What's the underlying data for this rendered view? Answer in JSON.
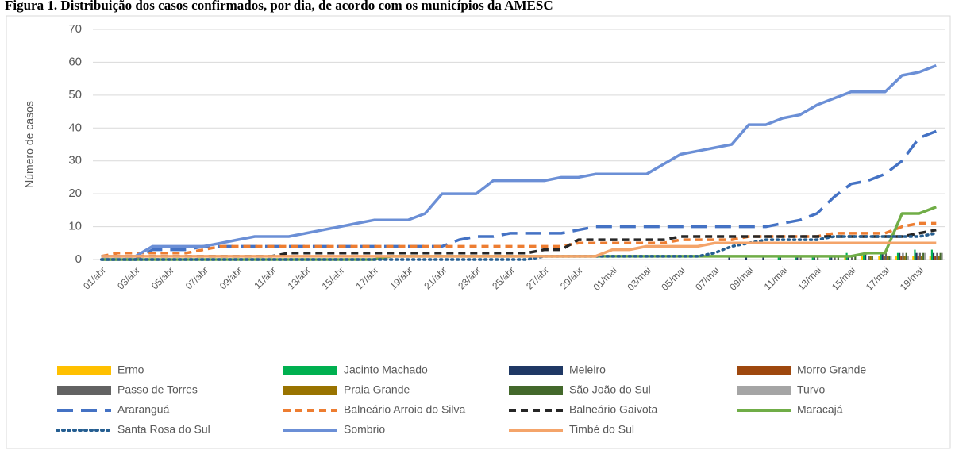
{
  "chart_data": {
    "type": "line",
    "title": "Figura 1. Distribuição dos casos confirmados, por dia, de acordo com os municípios da AMESC",
    "y_label": "Número de casos",
    "categories": [
      "01/abr",
      null,
      "03/abr",
      null,
      "05/abr",
      null,
      "07/abr",
      null,
      "09/abr",
      null,
      "11/abr",
      null,
      "13/abr",
      null,
      "15/abr",
      null,
      "17/abr",
      null,
      "19/abr",
      null,
      "21/abr",
      null,
      "23/abr",
      null,
      "25/abr",
      null,
      "27/abr",
      null,
      "29/abr",
      null,
      "01/mai",
      null,
      "03/mai",
      null,
      "05/mai",
      null,
      "07/mai",
      null,
      "09/mai",
      null,
      "11/mai",
      null,
      "13/mai",
      null,
      "15/mai",
      null,
      "17/mai",
      null,
      "19/mai",
      null
    ],
    "ylim": [
      0,
      70
    ],
    "yticks": [
      0,
      10,
      20,
      30,
      40,
      50,
      60,
      70
    ],
    "grid": true,
    "series": [
      {
        "name": "Ermo",
        "type": "bar",
        "color": "#FFC000",
        "values": [
          0,
          0,
          0,
          0,
          0,
          0,
          0,
          0,
          0,
          0,
          0,
          0,
          0,
          0,
          0,
          0,
          0,
          0,
          0,
          0,
          0,
          0,
          0,
          0,
          0,
          0,
          0,
          0,
          0,
          0,
          0,
          0,
          0,
          0,
          0,
          0,
          0,
          0,
          0,
          0,
          0,
          0,
          0,
          0,
          1,
          1,
          1,
          1,
          1,
          1
        ]
      },
      {
        "name": "Jacinto Machado",
        "type": "bar",
        "color": "#00B050",
        "values": [
          0,
          0,
          0,
          0,
          0,
          0,
          0,
          0,
          0,
          0,
          0,
          0,
          0,
          0,
          0,
          0,
          0,
          0,
          0,
          0,
          0,
          0,
          0,
          0,
          0,
          0,
          0,
          0,
          0,
          0,
          0,
          0,
          0,
          0,
          0,
          0,
          0,
          0,
          0,
          0,
          1,
          1,
          1,
          1,
          2,
          2,
          2,
          2,
          3,
          3
        ]
      },
      {
        "name": "Meleiro",
        "type": "bar",
        "color": "#1F3864",
        "values": [
          0,
          0,
          0,
          0,
          0,
          0,
          0,
          0,
          0,
          0,
          0,
          0,
          0,
          0,
          0,
          0,
          0,
          0,
          0,
          0,
          0,
          0,
          0,
          0,
          0,
          0,
          0,
          0,
          0,
          0,
          0,
          0,
          0,
          0,
          0,
          0,
          0,
          1,
          1,
          1,
          1,
          1,
          1,
          1,
          1,
          2,
          2,
          2,
          2,
          2
        ]
      },
      {
        "name": "Morro Grande",
        "type": "bar",
        "color": "#9E480E",
        "values": [
          0,
          0,
          0,
          0,
          0,
          0,
          0,
          0,
          0,
          0,
          0,
          0,
          0,
          0,
          0,
          0,
          0,
          0,
          0,
          0,
          0,
          0,
          0,
          0,
          0,
          0,
          0,
          0,
          0,
          0,
          0,
          0,
          0,
          0,
          0,
          0,
          0,
          0,
          0,
          0,
          0,
          0,
          0,
          0,
          0,
          0,
          1,
          1,
          1,
          1
        ]
      },
      {
        "name": "Passo de Torres",
        "type": "bar",
        "color": "#636363",
        "values": [
          0,
          0,
          0,
          0,
          0,
          0,
          0,
          0,
          0,
          0,
          0,
          0,
          0,
          0,
          0,
          0,
          0,
          0,
          0,
          0,
          0,
          0,
          0,
          0,
          0,
          0,
          0,
          0,
          0,
          0,
          0,
          0,
          0,
          0,
          0,
          0,
          0,
          0,
          0,
          0,
          0,
          1,
          1,
          1,
          1,
          1,
          2,
          2,
          2,
          2
        ]
      },
      {
        "name": "Praia Grande",
        "type": "bar",
        "color": "#997300",
        "values": [
          0,
          0,
          0,
          0,
          0,
          0,
          0,
          0,
          0,
          0,
          0,
          0,
          0,
          0,
          0,
          0,
          0,
          0,
          0,
          0,
          0,
          0,
          0,
          0,
          0,
          0,
          0,
          0,
          0,
          0,
          0,
          0,
          0,
          0,
          0,
          0,
          0,
          0,
          0,
          0,
          0,
          0,
          0,
          0,
          0,
          1,
          1,
          1,
          1,
          1
        ]
      },
      {
        "name": "São João do Sul",
        "type": "bar",
        "color": "#43682B",
        "values": [
          0,
          0,
          0,
          0,
          0,
          0,
          0,
          0,
          0,
          0,
          0,
          0,
          0,
          0,
          0,
          0,
          0,
          0,
          0,
          0,
          0,
          0,
          0,
          0,
          0,
          0,
          0,
          0,
          0,
          0,
          0,
          0,
          0,
          0,
          0,
          0,
          0,
          0,
          0,
          0,
          0,
          0,
          0,
          1,
          1,
          1,
          1,
          2,
          2,
          2
        ]
      },
      {
        "name": "Turvo",
        "type": "bar",
        "color": "#A5A5A5",
        "values": [
          0,
          0,
          0,
          0,
          0,
          0,
          0,
          0,
          0,
          0,
          0,
          0,
          0,
          0,
          0,
          0,
          0,
          0,
          0,
          0,
          0,
          0,
          0,
          0,
          0,
          0,
          0,
          0,
          0,
          0,
          0,
          0,
          0,
          0,
          0,
          0,
          0,
          0,
          0,
          0,
          0,
          0,
          0,
          0,
          0,
          0,
          1,
          1,
          2,
          2
        ]
      },
      {
        "name": "Araranguá",
        "style": "longdash",
        "color": "#4472C4",
        "values": [
          0,
          0,
          0,
          3,
          3,
          3,
          4,
          4,
          4,
          4,
          4,
          4,
          4,
          4,
          4,
          4,
          4,
          4,
          4,
          4,
          4,
          6,
          7,
          7,
          8,
          8,
          8,
          8,
          9,
          10,
          10,
          10,
          10,
          10,
          10,
          10,
          10,
          10,
          10,
          10,
          11,
          12,
          14,
          19,
          23,
          24,
          26,
          30,
          37,
          39
        ]
      },
      {
        "name": "Balneário Arroio do Silva",
        "style": "dash",
        "color": "#ED7D31",
        "values": [
          1,
          2,
          2,
          2,
          2,
          2,
          3,
          4,
          4,
          4,
          4,
          4,
          4,
          4,
          4,
          4,
          4,
          4,
          4,
          4,
          4,
          4,
          4,
          4,
          4,
          4,
          4,
          4,
          5,
          5,
          5,
          5,
          5,
          5,
          6,
          6,
          6,
          6,
          7,
          7,
          7,
          7,
          7,
          8,
          8,
          8,
          8,
          10,
          11,
          11
        ]
      },
      {
        "name": "Balneário Gaivota",
        "style": "dash",
        "color": "#262626",
        "values": [
          1,
          1,
          1,
          1,
          1,
          1,
          1,
          1,
          1,
          1,
          1,
          2,
          2,
          2,
          2,
          2,
          2,
          2,
          2,
          2,
          2,
          2,
          2,
          2,
          2,
          2,
          3,
          3,
          6,
          6,
          6,
          6,
          6,
          6,
          7,
          7,
          7,
          7,
          7,
          7,
          7,
          7,
          7,
          7,
          7,
          7,
          7,
          7,
          8,
          9
        ]
      },
      {
        "name": "Maracajá",
        "style": "solid",
        "color": "#70AD47",
        "values": [
          0,
          0,
          0,
          0,
          0,
          0,
          0,
          0,
          0,
          0,
          0,
          0,
          0,
          0,
          0,
          0,
          0,
          1,
          1,
          1,
          1,
          1,
          1,
          1,
          1,
          1,
          1,
          1,
          1,
          1,
          1,
          1,
          1,
          1,
          1,
          1,
          1,
          1,
          1,
          1,
          1,
          1,
          1,
          1,
          1,
          2,
          2,
          14,
          14,
          16
        ]
      },
      {
        "name": "Santa Rosa do Sul",
        "style": "dot",
        "color": "#255E91",
        "values": [
          0,
          0,
          0,
          0,
          0,
          0,
          0,
          0,
          0,
          0,
          0,
          0,
          0,
          0,
          0,
          0,
          0,
          0,
          0,
          0,
          0,
          0,
          0,
          0,
          0,
          0,
          1,
          1,
          1,
          1,
          1,
          1,
          1,
          1,
          1,
          1,
          2,
          4,
          5,
          6,
          6,
          6,
          6,
          7,
          7,
          7,
          7,
          7,
          7,
          8
        ]
      },
      {
        "name": "Sombrio",
        "style": "solid",
        "color": "#6B8FD6",
        "values": [
          1,
          1,
          1,
          4,
          4,
          4,
          4,
          5,
          6,
          7,
          7,
          7,
          8,
          9,
          10,
          11,
          12,
          12,
          12,
          14,
          20,
          20,
          20,
          24,
          24,
          24,
          24,
          25,
          25,
          26,
          26,
          26,
          26,
          29,
          32,
          33,
          34,
          35,
          41,
          41,
          43,
          44,
          47,
          49,
          51,
          51,
          51,
          56,
          57,
          59
        ]
      },
      {
        "name": "Timbé do Sul",
        "style": "solid",
        "color": "#F4A46A",
        "values": [
          1,
          1,
          1,
          1,
          1,
          1,
          1,
          1,
          1,
          1,
          1,
          1,
          1,
          1,
          1,
          1,
          1,
          1,
          1,
          1,
          1,
          1,
          1,
          1,
          1,
          1,
          1,
          1,
          1,
          1,
          3,
          3,
          4,
          4,
          4,
          4,
          5,
          5,
          5,
          5,
          5,
          5,
          5,
          5,
          5,
          5,
          5,
          5,
          5,
          5
        ]
      }
    ]
  }
}
